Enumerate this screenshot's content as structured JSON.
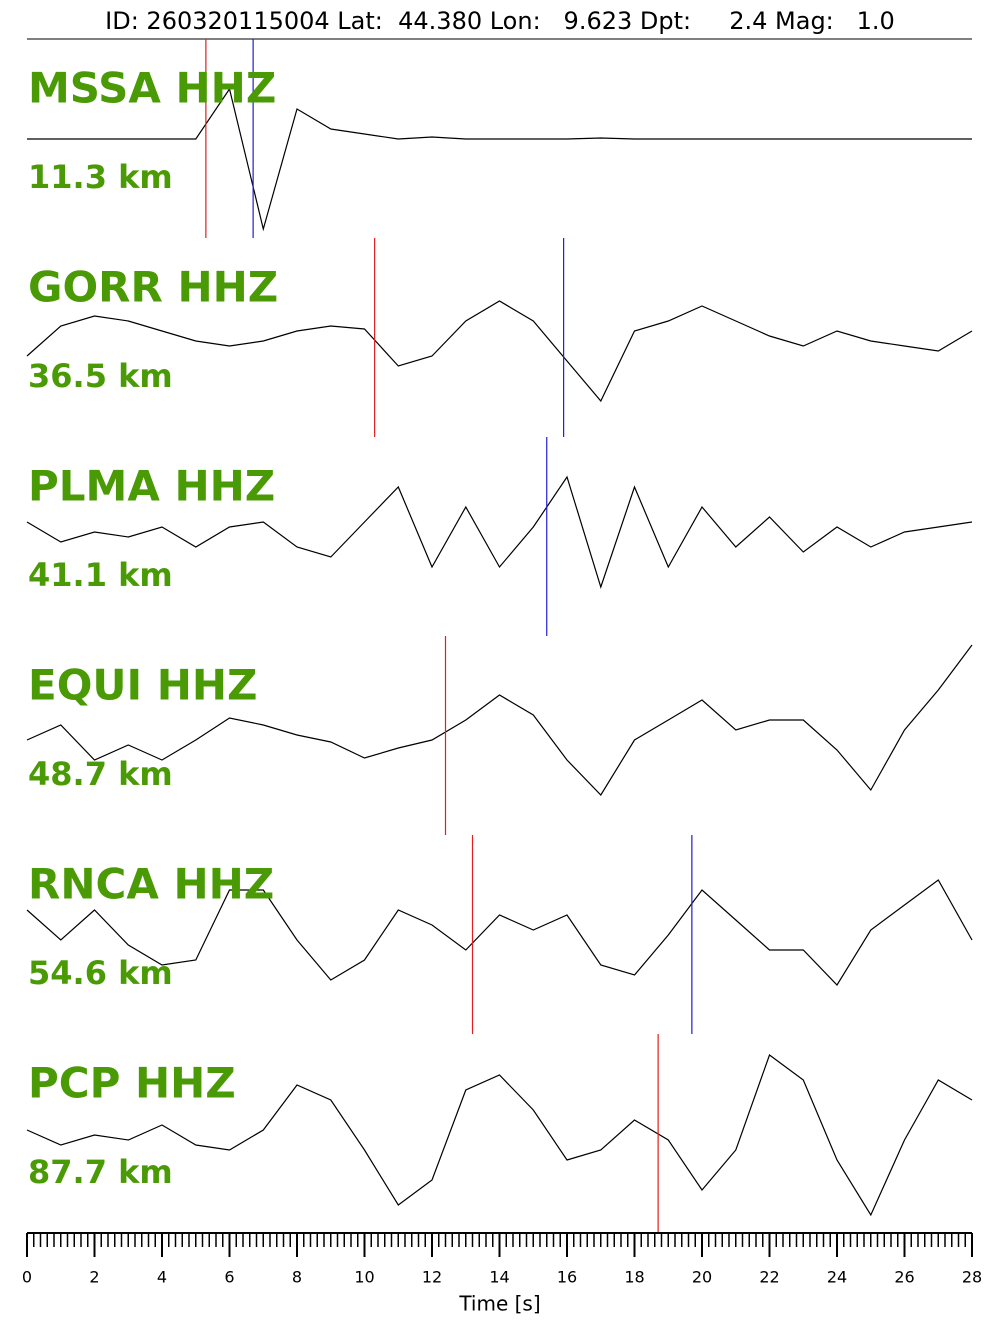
{
  "chart_data": {
    "type": "seismogram",
    "title": "ID: 260320115004 Lat:  44.380 Lon:   9.623 Dpt:     2.4 Mag:   1.0",
    "xlabel": "Time [s]",
    "xlim": [
      0,
      28
    ],
    "xticks": [
      0,
      2,
      4,
      6,
      8,
      10,
      12,
      14,
      16,
      18,
      20,
      22,
      24,
      26,
      28
    ],
    "xminorstep": 0.2,
    "x": [
      0,
      1,
      2,
      3,
      4,
      5,
      6,
      7,
      8,
      9,
      10,
      11,
      12,
      13,
      14,
      15,
      16,
      17,
      18,
      19,
      20,
      21,
      22,
      23,
      24,
      25,
      26,
      27,
      28
    ],
    "label_color": "#4a9a05",
    "trace_color": "#000000",
    "p_color": "#e02020",
    "s_color": "#2020d0",
    "series": [
      {
        "name": "MSSA HHZ",
        "distance": "11.3 km",
        "p_pick": 5.3,
        "s_pick": 6.7,
        "values": [
          0,
          0,
          0,
          0,
          0,
          0,
          0.5,
          -0.9,
          0.3,
          0.1,
          0.05,
          0,
          0.02,
          0,
          0,
          0,
          0,
          0.01,
          0,
          0,
          0,
          0,
          0,
          0,
          0,
          0,
          0,
          0,
          0
        ]
      },
      {
        "name": "GORR HHZ",
        "distance": "36.5 km",
        "p_pick": 10.3,
        "s_pick": 15.9,
        "values": [
          -0.18,
          0.12,
          0.22,
          0.17,
          0.07,
          -0.03,
          -0.08,
          -0.03,
          0.07,
          0.12,
          0.09,
          -0.28,
          -0.18,
          0.17,
          0.37,
          0.17,
          -0.23,
          -0.63,
          0.07,
          0.17,
          0.32,
          0.17,
          0.02,
          -0.08,
          0.07,
          -0.03,
          -0.08,
          -0.13,
          0.07
        ]
      },
      {
        "name": "PLMA HHZ",
        "distance": "41.1 km",
        "p_pick": null,
        "s_pick": 15.4,
        "values": [
          0.15,
          -0.05,
          0.05,
          0,
          0.1,
          -0.1,
          0.1,
          0.15,
          -0.1,
          -0.2,
          0.15,
          0.5,
          -0.3,
          0.3,
          -0.3,
          0.1,
          0.6,
          -0.5,
          0.5,
          -0.3,
          0.3,
          -0.1,
          0.2,
          -0.15,
          0.1,
          -0.1,
          0.05,
          0.1,
          0.15
        ]
      },
      {
        "name": "EQUI HHZ",
        "distance": "48.7 km",
        "p_pick": 12.4,
        "s_pick": null,
        "values": [
          -0.04,
          0.11,
          -0.24,
          -0.09,
          -0.24,
          -0.04,
          0.18,
          0.11,
          0.01,
          -0.06,
          -0.22,
          -0.12,
          -0.04,
          0.16,
          0.41,
          0.21,
          -0.24,
          -0.59,
          -0.04,
          0.16,
          0.36,
          0.06,
          0.16,
          0.16,
          -0.14,
          -0.54,
          0.06,
          0.46,
          0.91
        ]
      },
      {
        "name": "RNCA HHZ",
        "distance": "54.6 km",
        "p_pick": 13.2,
        "s_pick": 19.7,
        "values": [
          0.25,
          -0.05,
          0.25,
          -0.1,
          -0.3,
          -0.25,
          0.45,
          0.45,
          -0.05,
          -0.45,
          -0.25,
          0.25,
          0.1,
          -0.15,
          0.2,
          0.05,
          0.2,
          -0.3,
          -0.4,
          0,
          0.45,
          0.15,
          -0.15,
          -0.15,
          -0.5,
          0.05,
          0.3,
          0.55,
          -0.05
        ]
      },
      {
        "name": "PCP HHZ",
        "distance": "87.7 km",
        "p_pick": 18.7,
        "s_pick": null,
        "values": [
          0.04,
          -0.11,
          -0.01,
          -0.06,
          0.09,
          -0.11,
          -0.16,
          0.04,
          0.49,
          0.34,
          -0.16,
          -0.71,
          -0.46,
          0.44,
          0.59,
          0.24,
          -0.26,
          -0.16,
          0.14,
          -0.06,
          -0.56,
          -0.16,
          0.79,
          0.54,
          -0.26,
          -0.81,
          -0.06,
          0.54,
          0.34
        ]
      }
    ]
  }
}
